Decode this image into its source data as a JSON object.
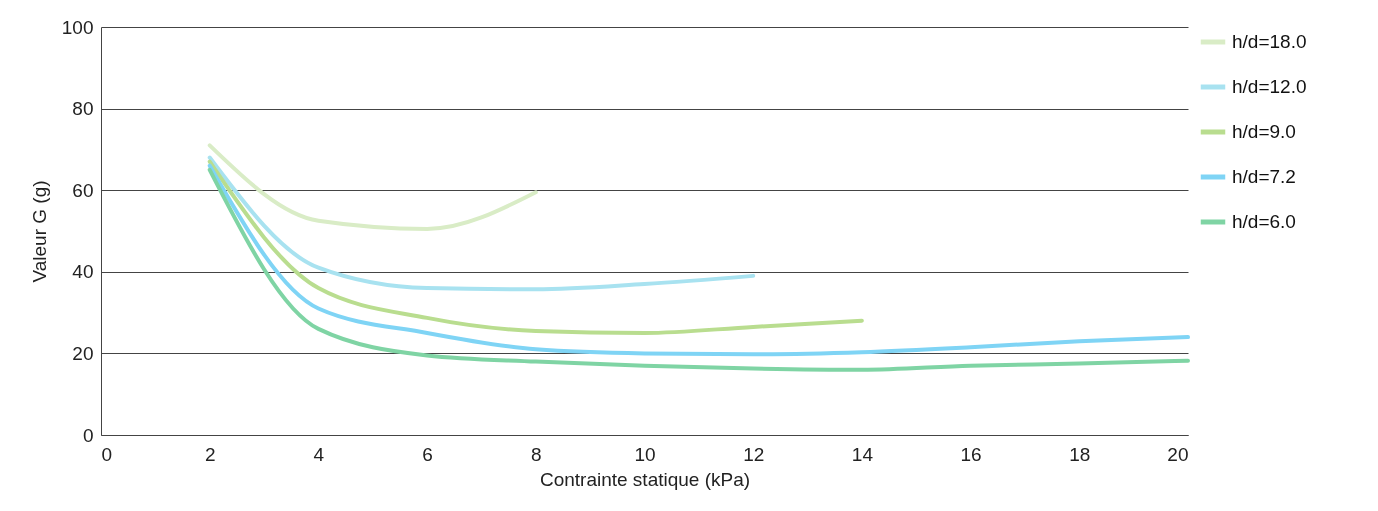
{
  "chart_data": {
    "type": "line",
    "xlabel": "Contrainte statique (kPa)",
    "ylabel": "Valeur G (g)",
    "xlim": [
      0,
      20
    ],
    "xticks": [
      0,
      2,
      4,
      6,
      8,
      10,
      12,
      14,
      16,
      18,
      20
    ],
    "ylim": [
      0,
      100
    ],
    "yticks": [
      0,
      20,
      40,
      60,
      80,
      100
    ],
    "grid": "y",
    "legend": "right",
    "marker": "none",
    "line_style": "solid",
    "series": [
      {
        "name": "h/d=18.0",
        "color": "#d9ecc6",
        "x": [
          2,
          4,
          6,
          8
        ],
        "values": [
          71,
          52.5,
          50.5,
          59.5
        ]
      },
      {
        "name": "h/d=12.0",
        "color": "#a8e2f0",
        "x": [
          2,
          4,
          6,
          8,
          10,
          12
        ],
        "values": [
          68,
          41,
          36,
          35.7,
          37,
          39
        ]
      },
      {
        "name": "h/d=9.0",
        "color": "#b9dd8f",
        "x": [
          2,
          4,
          6,
          8,
          10,
          12,
          14
        ],
        "values": [
          67,
          36,
          28.7,
          25.5,
          25,
          26.5,
          28
        ]
      },
      {
        "name": "h/d=7.2",
        "color": "#7fd4f5",
        "x": [
          2,
          4,
          6,
          8,
          10,
          12,
          14,
          16,
          18,
          20
        ],
        "values": [
          66,
          31,
          25,
          21,
          20,
          19.8,
          20.3,
          21.5,
          23,
          24
        ]
      },
      {
        "name": "h/d=6.0",
        "color": "#7fd4a4",
        "x": [
          2,
          4,
          6,
          8,
          10,
          12,
          14,
          16,
          18,
          20
        ],
        "values": [
          65,
          26,
          19.5,
          18,
          17,
          16.3,
          16,
          17,
          17.5,
          18.2
        ]
      }
    ]
  }
}
